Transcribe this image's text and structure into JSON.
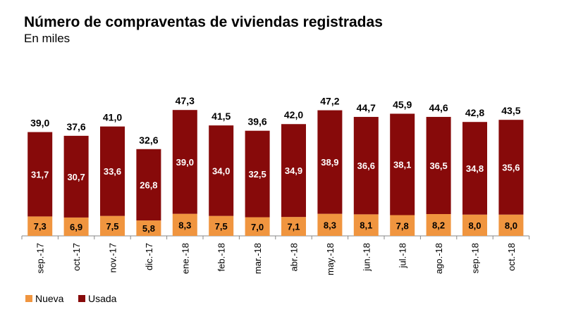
{
  "chart_data": {
    "type": "bar",
    "stacked": true,
    "title": "Número de compraventas de viviendas registradas",
    "subtitle": "En miles",
    "categories": [
      "sep.-17",
      "oct.-17",
      "nov.-17",
      "dic.-17",
      "ene.-18",
      "feb.-18",
      "mar.-18",
      "abr.-18",
      "may.-18",
      "jun.-18",
      "jul.-18",
      "ago.-18",
      "sep.-18",
      "oct.-18"
    ],
    "series": [
      {
        "name": "Nueva",
        "color": "#F0953F",
        "values": [
          7.3,
          6.9,
          7.5,
          5.8,
          8.3,
          7.5,
          7.0,
          7.1,
          8.3,
          8.1,
          7.8,
          8.2,
          8.0,
          8.0
        ],
        "labels": [
          "7,3",
          "6,9",
          "7,5",
          "5,8",
          "8,3",
          "7,5",
          "7,0",
          "7,1",
          "8,3",
          "8,1",
          "7,8",
          "8,2",
          "8,0",
          "8,0"
        ]
      },
      {
        "name": "Usada",
        "color": "#870A0A",
        "values": [
          31.7,
          30.7,
          33.6,
          26.8,
          39.0,
          34.0,
          32.5,
          34.9,
          38.9,
          36.6,
          38.1,
          36.5,
          34.8,
          35.6
        ],
        "labels": [
          "31,7",
          "30,7",
          "33,6",
          "26,8",
          "39,0",
          "34,0",
          "32,5",
          "34,9",
          "38,9",
          "36,6",
          "38,1",
          "36,5",
          "34,8",
          "35,6"
        ]
      }
    ],
    "totals": [
      39.0,
      37.6,
      41.0,
      32.6,
      47.3,
      41.5,
      39.6,
      42.0,
      47.2,
      44.7,
      45.9,
      44.6,
      42.8,
      43.5
    ],
    "total_labels": [
      "39,0",
      "37,6",
      "41,0",
      "32,6",
      "47,3",
      "41,5",
      "39,6",
      "42,0",
      "47,2",
      "44,7",
      "45,9",
      "44,6",
      "42,8",
      "43,5"
    ],
    "legend_position": "bottom-left",
    "grid": false
  }
}
